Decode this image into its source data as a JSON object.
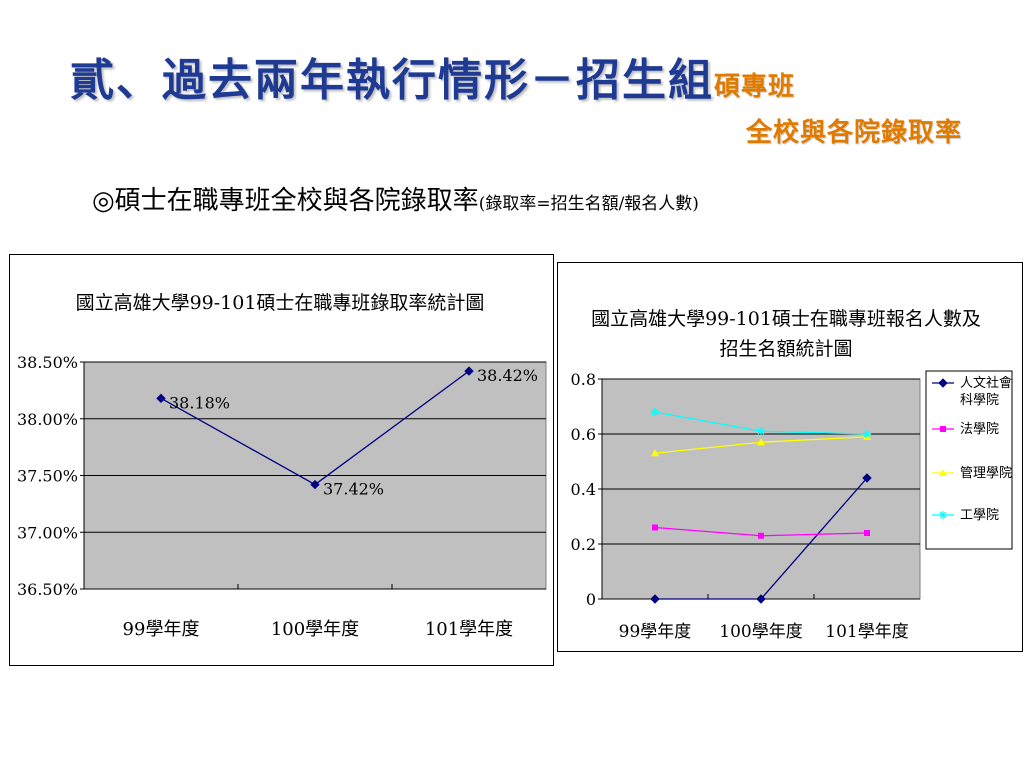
{
  "slide": {
    "title_main": "貳、過去兩年執行情形－招生組",
    "title_sub1": "碩專班",
    "title_sub2": "全校與各院錄取率",
    "heading": "◎碩士在職專班全校與各院錄取率",
    "heading_note": "(錄取率=招生名額/報名人數)"
  },
  "colors": {
    "title": "#1f3a93",
    "subtitle": "#e07b00",
    "plot_bg": "#c0c0c0",
    "line_navy": "#000080",
    "magenta": "#ff00ff",
    "yellow": "#ffff00",
    "cyan": "#00ffff"
  },
  "chart_data": [
    {
      "type": "line",
      "title": "國立高雄大學99-101碩士在職專班錄取率統計圖",
      "categories": [
        "99學年度",
        "100學年度",
        "101學年度"
      ],
      "series": [
        {
          "values": [
            38.18,
            37.42,
            38.42
          ],
          "data_labels": [
            "38.18%",
            "37.42%",
            "38.42%"
          ],
          "color": "#000080",
          "marker": "diamond"
        }
      ],
      "yticks": [
        "36.50%",
        "37.00%",
        "37.50%",
        "38.00%",
        "38.50%"
      ],
      "ylim": [
        36.5,
        38.5
      ],
      "grid": true,
      "legend": "none"
    },
    {
      "type": "line",
      "title": "國立高雄大學99-101碩士在職專班報名人數及招生名額統計圖",
      "title_lines": [
        "國立高雄大學99-101碩士在職專班報名人數及",
        "招生名額統計圖"
      ],
      "categories": [
        "99學年度",
        "100學年度",
        "101學年度"
      ],
      "series": [
        {
          "name": "人文社會科學院",
          "name_lines": [
            "人文社會",
            "科學院"
          ],
          "values": [
            0,
            0,
            0.44
          ],
          "color": "#000080",
          "marker": "diamond"
        },
        {
          "name": "法學院",
          "name_lines": [
            "法學院"
          ],
          "values": [
            0.26,
            0.23,
            0.24
          ],
          "color": "#ff00ff",
          "marker": "square"
        },
        {
          "name": "管理學院",
          "name_lines": [
            "管理學院"
          ],
          "values": [
            0.53,
            0.57,
            0.59
          ],
          "color": "#ffff00",
          "marker": "triangle"
        },
        {
          "name": "工學院",
          "name_lines": [
            "工學院"
          ],
          "values": [
            0.68,
            0.61,
            0.6
          ],
          "color": "#00ffff",
          "marker": "star"
        }
      ],
      "yticks": [
        "0",
        "0.2",
        "0.4",
        "0.6",
        "0.8"
      ],
      "ylim": [
        0,
        0.8
      ],
      "grid": true,
      "legend": "right"
    }
  ]
}
